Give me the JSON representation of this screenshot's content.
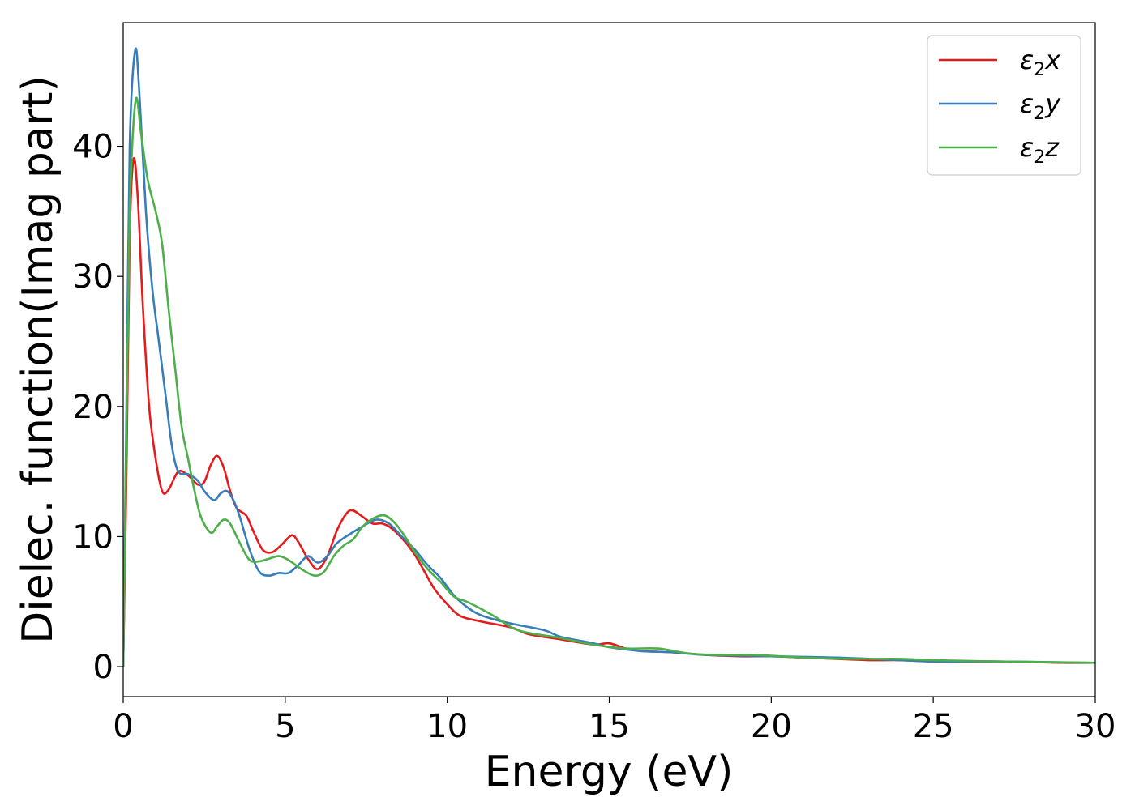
{
  "chart_data": {
    "type": "line",
    "title": "",
    "xlabel": "Energy (eV)",
    "ylabel": "Dielec. function(Imag part)",
    "xlim": [
      0,
      30
    ],
    "ylim": [
      -2.3,
      49.5
    ],
    "xticks": [
      0,
      5,
      10,
      15,
      20,
      25,
      30
    ],
    "yticks": [
      0,
      10,
      20,
      30,
      40
    ],
    "grid": false,
    "legend_position": "top-right",
    "series": [
      {
        "name": "ε2x",
        "legend_base": "ε",
        "legend_sub": "2",
        "legend_var": "x",
        "color": "#e41a1c",
        "points": [
          [
            0,
            0
          ],
          [
            0.1,
            15
          ],
          [
            0.2,
            33
          ],
          [
            0.32,
            39
          ],
          [
            0.45,
            36
          ],
          [
            0.6,
            28
          ],
          [
            0.8,
            20
          ],
          [
            1.0,
            16
          ],
          [
            1.2,
            13.5
          ],
          [
            1.4,
            13.6
          ],
          [
            1.7,
            15
          ],
          [
            2.0,
            14.7
          ],
          [
            2.3,
            14.0
          ],
          [
            2.5,
            14.2
          ],
          [
            2.7,
            15.5
          ],
          [
            2.9,
            16.2
          ],
          [
            3.1,
            15.3
          ],
          [
            3.3,
            13.5
          ],
          [
            3.5,
            12.2
          ],
          [
            3.8,
            11.6
          ],
          [
            4.0,
            10.5
          ],
          [
            4.3,
            9.0
          ],
          [
            4.6,
            8.8
          ],
          [
            4.9,
            9.4
          ],
          [
            5.2,
            10.1
          ],
          [
            5.4,
            9.6
          ],
          [
            5.7,
            8.3
          ],
          [
            6.0,
            7.5
          ],
          [
            6.3,
            8.5
          ],
          [
            6.6,
            10.5
          ],
          [
            6.9,
            11.8
          ],
          [
            7.1,
            12.0
          ],
          [
            7.4,
            11.5
          ],
          [
            7.7,
            11.0
          ],
          [
            8.0,
            11.0
          ],
          [
            8.3,
            10.6
          ],
          [
            8.7,
            9.6
          ],
          [
            9.0,
            8.6
          ],
          [
            9.3,
            7.3
          ],
          [
            9.6,
            6.0
          ],
          [
            10.0,
            4.8
          ],
          [
            10.4,
            3.9
          ],
          [
            11.0,
            3.5
          ],
          [
            12.0,
            3.0
          ],
          [
            12.5,
            2.5
          ],
          [
            13.5,
            2.1
          ],
          [
            14.5,
            1.7
          ],
          [
            15.0,
            1.8
          ],
          [
            15.5,
            1.4
          ],
          [
            16.0,
            1.2
          ],
          [
            17.0,
            1.1
          ],
          [
            18.0,
            0.9
          ],
          [
            19.0,
            0.8
          ],
          [
            20.0,
            0.8
          ],
          [
            21.0,
            0.7
          ],
          [
            22.0,
            0.6
          ],
          [
            23.0,
            0.5
          ],
          [
            24.0,
            0.5
          ],
          [
            25.0,
            0.4
          ],
          [
            27.0,
            0.4
          ],
          [
            29.0,
            0.3
          ],
          [
            30.0,
            0.3
          ]
        ]
      },
      {
        "name": "ε2y",
        "legend_base": "ε",
        "legend_sub": "2",
        "legend_var": "y",
        "color": "#377eb8",
        "points": [
          [
            0,
            0
          ],
          [
            0.1,
            20
          ],
          [
            0.2,
            40
          ],
          [
            0.37,
            47.4
          ],
          [
            0.5,
            44
          ],
          [
            0.7,
            35
          ],
          [
            0.9,
            29
          ],
          [
            1.1,
            25
          ],
          [
            1.3,
            21
          ],
          [
            1.5,
            17
          ],
          [
            1.7,
            15
          ],
          [
            2.0,
            14.8
          ],
          [
            2.3,
            14.3
          ],
          [
            2.5,
            13.5
          ],
          [
            2.8,
            12.8
          ],
          [
            3.0,
            13.3
          ],
          [
            3.2,
            13.5
          ],
          [
            3.4,
            12.8
          ],
          [
            3.6,
            11.5
          ],
          [
            3.9,
            9.0
          ],
          [
            4.2,
            7.3
          ],
          [
            4.5,
            7.0
          ],
          [
            4.8,
            7.2
          ],
          [
            5.1,
            7.2
          ],
          [
            5.4,
            7.8
          ],
          [
            5.7,
            8.5
          ],
          [
            6.0,
            8.0
          ],
          [
            6.3,
            8.5
          ],
          [
            6.6,
            9.5
          ],
          [
            7.0,
            10.2
          ],
          [
            7.4,
            10.8
          ],
          [
            7.8,
            11.3
          ],
          [
            8.2,
            11.0
          ],
          [
            8.6,
            10.0
          ],
          [
            9.0,
            9.0
          ],
          [
            9.4,
            7.8
          ],
          [
            9.8,
            6.8
          ],
          [
            10.2,
            5.5
          ],
          [
            10.6,
            4.6
          ],
          [
            11.0,
            4.0
          ],
          [
            11.5,
            3.6
          ],
          [
            12.0,
            3.3
          ],
          [
            13.0,
            2.8
          ],
          [
            13.5,
            2.3
          ],
          [
            14.5,
            1.8
          ],
          [
            15.0,
            1.5
          ],
          [
            16.0,
            1.2
          ],
          [
            17.0,
            1.1
          ],
          [
            18.0,
            0.9
          ],
          [
            20.0,
            0.8
          ],
          [
            22.0,
            0.7
          ],
          [
            24.0,
            0.5
          ],
          [
            25.0,
            0.4
          ],
          [
            27.0,
            0.4
          ],
          [
            30.0,
            0.3
          ]
        ]
      },
      {
        "name": "ε2z",
        "legend_base": "ε",
        "legend_sub": "2",
        "legend_var": "z",
        "color": "#4daf4a",
        "points": [
          [
            0,
            0
          ],
          [
            0.1,
            18
          ],
          [
            0.2,
            35
          ],
          [
            0.38,
            43.5
          ],
          [
            0.55,
            41
          ],
          [
            0.75,
            37.5
          ],
          [
            1.0,
            35.0
          ],
          [
            1.2,
            32.5
          ],
          [
            1.4,
            27.5
          ],
          [
            1.6,
            23
          ],
          [
            1.8,
            18.5
          ],
          [
            2.0,
            16.0
          ],
          [
            2.2,
            13.5
          ],
          [
            2.4,
            11.5
          ],
          [
            2.7,
            10.3
          ],
          [
            2.9,
            10.8
          ],
          [
            3.1,
            11.3
          ],
          [
            3.3,
            11.0
          ],
          [
            3.6,
            9.5
          ],
          [
            3.9,
            8.2
          ],
          [
            4.2,
            8.1
          ],
          [
            4.5,
            8.3
          ],
          [
            4.8,
            8.5
          ],
          [
            5.1,
            8.2
          ],
          [
            5.5,
            7.5
          ],
          [
            5.9,
            7.0
          ],
          [
            6.2,
            7.3
          ],
          [
            6.5,
            8.5
          ],
          [
            6.8,
            9.3
          ],
          [
            7.1,
            9.8
          ],
          [
            7.4,
            10.8
          ],
          [
            7.8,
            11.5
          ],
          [
            8.1,
            11.6
          ],
          [
            8.4,
            11.0
          ],
          [
            8.7,
            10.0
          ],
          [
            9.0,
            8.8
          ],
          [
            9.4,
            7.5
          ],
          [
            9.8,
            6.5
          ],
          [
            10.2,
            5.4
          ],
          [
            10.6,
            5.0
          ],
          [
            11.0,
            4.5
          ],
          [
            11.5,
            3.8
          ],
          [
            12.0,
            3.0
          ],
          [
            12.5,
            2.6
          ],
          [
            13.5,
            2.2
          ],
          [
            14.5,
            1.7
          ],
          [
            15.5,
            1.4
          ],
          [
            16.5,
            1.4
          ],
          [
            17.5,
            1.0
          ],
          [
            18.5,
            0.9
          ],
          [
            19.5,
            0.9
          ],
          [
            21.0,
            0.7
          ],
          [
            22.5,
            0.6
          ],
          [
            24.0,
            0.6
          ],
          [
            25.0,
            0.5
          ],
          [
            27.0,
            0.4
          ],
          [
            30.0,
            0.3
          ]
        ]
      }
    ]
  }
}
